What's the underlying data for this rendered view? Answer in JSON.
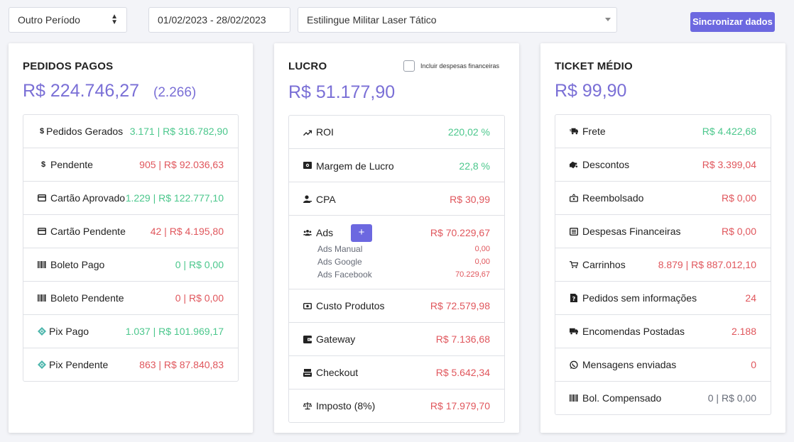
{
  "toolbar": {
    "period": "Outro Período",
    "date_range": "01/02/2023 - 28/02/2023",
    "product": "Estilingue Militar Laser Tático",
    "sync_label": "Sincronizar dados"
  },
  "pedidos": {
    "title": "PEDIDOS PAGOS",
    "value": "R$ 224.746,27",
    "count": "(2.266)",
    "rows": [
      {
        "label": "Pedidos Gerados",
        "value": "3.171 | R$ 316.782,90",
        "icon": "dollar-icon"
      },
      {
        "label": "Pendente",
        "value": "905 | R$ 92.036,63",
        "icon": "dollar-icon"
      },
      {
        "label": "Cartão Aprovado",
        "value": "1.229 | R$ 122.777,10",
        "icon": "credit-card-icon"
      },
      {
        "label": "Cartão Pendente",
        "value": "42 | R$ 4.195,80",
        "icon": "credit-card-icon"
      },
      {
        "label": "Boleto Pago",
        "value": "0 | R$ 0,00",
        "icon": "barcode-icon"
      },
      {
        "label": "Boleto Pendente",
        "value": "0 | R$ 0,00",
        "icon": "barcode-icon"
      },
      {
        "label": "Pix Pago",
        "value": "1.037 | R$ 101.969,17",
        "icon": "pix-icon"
      },
      {
        "label": "Pix Pendente",
        "value": "863 | R$ 87.840,83",
        "icon": "pix-icon"
      }
    ]
  },
  "lucro": {
    "title": "LUCRO",
    "checkbox_label": "Incluir despesas financeiras",
    "value": "R$ 51.177,90",
    "rows": [
      {
        "label": "ROI",
        "value": "220,02 %",
        "icon": "trending-up-icon"
      },
      {
        "label": "Margem de Lucro",
        "value": "22,8 %",
        "icon": "money-bill-icon"
      },
      {
        "label": "CPA",
        "value": "R$ 30,99",
        "icon": "user-icon"
      },
      {
        "label": "Ads",
        "value": "R$ 70.229,67",
        "icon": "users-icon",
        "plus": "+"
      },
      {
        "label": "Custo Produtos",
        "value": "R$ 72.579,98",
        "icon": "money-icon"
      },
      {
        "label": "Gateway",
        "value": "R$ 7.136,68",
        "icon": "wallet-icon"
      },
      {
        "label": "Checkout",
        "value": "R$ 5.642,34",
        "icon": "cash-register-icon"
      },
      {
        "label": "Imposto (8%)",
        "value": "R$ 17.979,70",
        "icon": "scale-icon"
      }
    ],
    "ads_breakdown": [
      {
        "label": "Ads Manual",
        "value": "0,00"
      },
      {
        "label": "Ads Google",
        "value": "0,00"
      },
      {
        "label": "Ads Facebook",
        "value": "70.229,67"
      }
    ]
  },
  "ticket": {
    "title": "TICKET MÉDIO",
    "value": "R$ 99,90",
    "rows": [
      {
        "label": "Frete",
        "value": "R$ 4.422,68",
        "icon": "shipping-fast-icon"
      },
      {
        "label": "Descontos",
        "value": "R$ 3.399,04",
        "icon": "hand-holding-icon"
      },
      {
        "label": "Reembolsado",
        "value": "R$ 0,00",
        "icon": "refund-icon"
      },
      {
        "label": "Despesas Financeiras",
        "value": "R$ 0,00",
        "icon": "receipt-icon"
      },
      {
        "label": "Carrinhos",
        "value": "8.879 | R$ 887.012,10",
        "icon": "cart-icon"
      },
      {
        "label": "Pedidos sem informações",
        "value": "24",
        "icon": "file-question-icon"
      },
      {
        "label": "Encomendas Postadas",
        "value": "2.188",
        "icon": "truck-icon"
      },
      {
        "label": "Mensagens enviadas",
        "value": "0",
        "icon": "whatsapp-icon"
      },
      {
        "label": "Bol. Compensado",
        "value": "0 | R$ 0,00",
        "icon": "barcode-icon"
      }
    ]
  },
  "colors": {
    "accent": "#6c68e0",
    "value_purple": "#7a6fd6",
    "positive": "#4bc78c",
    "negative": "#e0565c"
  }
}
